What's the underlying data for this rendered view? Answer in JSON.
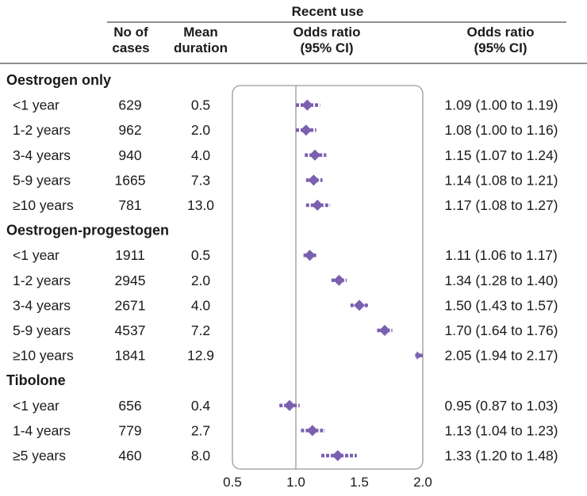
{
  "header": {
    "group_title": "Recent use",
    "col_cases": [
      "No of",
      "cases"
    ],
    "col_duration": [
      "Mean",
      "duration"
    ],
    "col_plot": [
      "Odds ratio",
      "(95% CI)"
    ],
    "col_or": [
      "Odds ratio",
      "(95% CI)"
    ]
  },
  "colors": {
    "marker": "#7b5fb0",
    "ci": "#7b5fb0",
    "reference_line": "#9a9a9a",
    "frame": "#9a9a9a",
    "rule": "#4a4a4a"
  },
  "chart_data": {
    "type": "forest",
    "xlim": [
      0.5,
      2.0
    ],
    "ticks": [
      "0.5",
      "1.0",
      "1.5",
      "2.0"
    ],
    "tick_values": [
      0.5,
      1.0,
      1.5,
      2.0
    ],
    "reference_value": 1.0,
    "groups": [
      {
        "name": "Oestrogen only",
        "rows": [
          {
            "label": "<1 year",
            "cases": "629",
            "duration": "0.5",
            "or": 1.09,
            "lo": 1.0,
            "hi": 1.19,
            "text": "1.09 (1.00 to 1.19)"
          },
          {
            "label": "1-2 years",
            "cases": "962",
            "duration": "2.0",
            "or": 1.08,
            "lo": 1.0,
            "hi": 1.16,
            "text": "1.08 (1.00 to 1.16)"
          },
          {
            "label": "3-4 years",
            "cases": "940",
            "duration": "4.0",
            "or": 1.15,
            "lo": 1.07,
            "hi": 1.24,
            "text": "1.15 (1.07 to 1.24)"
          },
          {
            "label": "5-9 years",
            "cases": "1665",
            "duration": "7.3",
            "or": 1.14,
            "lo": 1.08,
            "hi": 1.21,
            "text": "1.14 (1.08 to 1.21)"
          },
          {
            "label": "≥10 years",
            "cases": "781",
            "duration": "13.0",
            "or": 1.17,
            "lo": 1.08,
            "hi": 1.27,
            "text": "1.17 (1.08 to 1.27)"
          }
        ]
      },
      {
        "name": "Oestrogen-progestogen",
        "rows": [
          {
            "label": "<1 year",
            "cases": "1911",
            "duration": "0.5",
            "or": 1.11,
            "lo": 1.06,
            "hi": 1.17,
            "text": "1.11 (1.06 to 1.17)"
          },
          {
            "label": "1-2 years",
            "cases": "2945",
            "duration": "2.0",
            "or": 1.34,
            "lo": 1.28,
            "hi": 1.4,
            "text": "1.34 (1.28 to 1.40)"
          },
          {
            "label": "3-4 years",
            "cases": "2671",
            "duration": "4.0",
            "or": 1.5,
            "lo": 1.43,
            "hi": 1.57,
            "text": "1.50 (1.43 to 1.57)"
          },
          {
            "label": "5-9 years",
            "cases": "4537",
            "duration": "7.2",
            "or": 1.7,
            "lo": 1.64,
            "hi": 1.76,
            "text": "1.70 (1.64 to 1.76)"
          },
          {
            "label": "≥10 years",
            "cases": "1841",
            "duration": "12.9",
            "or": 2.05,
            "lo": 1.94,
            "hi": 2.17,
            "text": "2.05 (1.94 to 2.17)"
          }
        ]
      },
      {
        "name": "Tibolone",
        "rows": [
          {
            "label": "<1 year",
            "cases": "656",
            "duration": "0.4",
            "or": 0.95,
            "lo": 0.87,
            "hi": 1.03,
            "text": "0.95 (0.87 to 1.03)"
          },
          {
            "label": "1-4 years",
            "cases": "779",
            "duration": "2.7",
            "or": 1.13,
            "lo": 1.04,
            "hi": 1.23,
            "text": "1.13 (1.04 to 1.23)"
          },
          {
            "label": "≥5 years",
            "cases": "460",
            "duration": "8.0",
            "or": 1.33,
            "lo": 1.2,
            "hi": 1.48,
            "text": "1.33 (1.20 to 1.48)"
          }
        ]
      }
    ]
  }
}
